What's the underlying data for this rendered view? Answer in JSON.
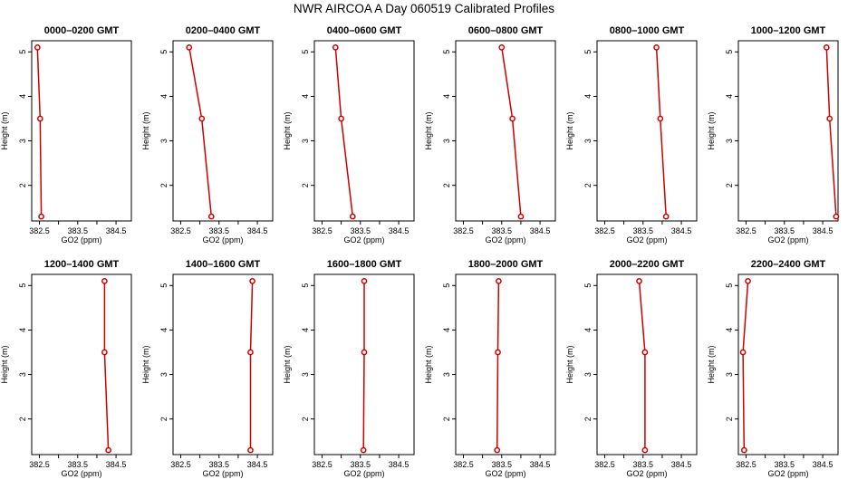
{
  "figure": {
    "title": "NWR AIRCOA A  Day 060519  Calibrated Profiles",
    "line_color": "#cc0000",
    "axis_color": "#000000"
  },
  "chart_data": [
    {
      "type": "line",
      "title": "0000–0200 GMT",
      "xlabel": "GO2 (ppm)",
      "ylabel": "Height (m)",
      "xlim": [
        382.3,
        384.9
      ],
      "ylim": [
        1.2,
        5.25
      ],
      "xticks": [
        382.5,
        383.5,
        384.5
      ],
      "xtick_labels": [
        "382.5",
        "383.5",
        "384.5"
      ],
      "yticks": [
        2,
        3,
        4,
        5
      ],
      "ytick_labels": [
        "2",
        "3",
        "4",
        "5"
      ],
      "x": [
        382.45,
        382.52,
        382.55
      ],
      "y": [
        5.1,
        3.5,
        1.3
      ]
    },
    {
      "type": "line",
      "title": "0200–0400 GMT",
      "xlabel": "GO2 (ppm)",
      "ylabel": "Height (m)",
      "xlim": [
        382.3,
        384.9
      ],
      "ylim": [
        1.2,
        5.25
      ],
      "xticks": [
        382.5,
        383.5,
        384.5
      ],
      "xtick_labels": [
        "382.5",
        "383.5",
        "384.5"
      ],
      "yticks": [
        2,
        3,
        4,
        5
      ],
      "ytick_labels": [
        "2",
        "3",
        "4",
        "5"
      ],
      "x": [
        382.72,
        383.05,
        383.3
      ],
      "y": [
        5.1,
        3.5,
        1.3
      ]
    },
    {
      "type": "line",
      "title": "0400–0600 GMT",
      "xlabel": "GO2 (ppm)",
      "ylabel": "Height (m)",
      "xlim": [
        382.3,
        384.9
      ],
      "ylim": [
        1.2,
        5.25
      ],
      "xticks": [
        382.5,
        383.5,
        384.5
      ],
      "xtick_labels": [
        "382.5",
        "383.5",
        "384.5"
      ],
      "yticks": [
        2,
        3,
        4,
        5
      ],
      "ytick_labels": [
        "2",
        "3",
        "4",
        "5"
      ],
      "x": [
        382.85,
        383.0,
        383.3
      ],
      "y": [
        5.1,
        3.5,
        1.3
      ]
    },
    {
      "type": "line",
      "title": "0600–0800 GMT",
      "xlabel": "GO2 (ppm)",
      "ylabel": "Height (m)",
      "xlim": [
        382.3,
        384.9
      ],
      "ylim": [
        1.2,
        5.25
      ],
      "xticks": [
        382.5,
        383.5,
        384.5
      ],
      "xtick_labels": [
        "382.5",
        "383.5",
        "384.5"
      ],
      "yticks": [
        2,
        3,
        4,
        5
      ],
      "ytick_labels": [
        "2",
        "3",
        "4",
        "5"
      ],
      "x": [
        383.5,
        383.78,
        384.0
      ],
      "y": [
        5.1,
        3.5,
        1.3
      ]
    },
    {
      "type": "line",
      "title": "0800–1000 GMT",
      "xlabel": "GO2 (ppm)",
      "ylabel": "Height (m)",
      "xlim": [
        382.3,
        384.9
      ],
      "ylim": [
        1.2,
        5.25
      ],
      "xticks": [
        382.5,
        383.5,
        384.5
      ],
      "xtick_labels": [
        "382.5",
        "383.5",
        "384.5"
      ],
      "yticks": [
        2,
        3,
        4,
        5
      ],
      "ytick_labels": [
        "2",
        "3",
        "4",
        "5"
      ],
      "x": [
        383.85,
        383.95,
        384.1
      ],
      "y": [
        5.1,
        3.5,
        1.3
      ]
    },
    {
      "type": "line",
      "title": "1000–1200 GMT",
      "xlabel": "GO2 (ppm)",
      "ylabel": "Height (m)",
      "xlim": [
        382.3,
        384.9
      ],
      "ylim": [
        1.2,
        5.25
      ],
      "xticks": [
        382.5,
        383.5,
        384.5
      ],
      "xtick_labels": [
        "382.5",
        "383.5",
        "384.5"
      ],
      "yticks": [
        2,
        3,
        4,
        5
      ],
      "ytick_labels": [
        "2",
        "3",
        "4",
        "5"
      ],
      "x": [
        384.6,
        384.68,
        384.85
      ],
      "y": [
        5.1,
        3.5,
        1.3
      ]
    },
    {
      "type": "line",
      "title": "1200–1400 GMT",
      "xlabel": "GO2 (ppm)",
      "ylabel": "Height (m)",
      "xlim": [
        382.3,
        384.9
      ],
      "ylim": [
        1.2,
        5.25
      ],
      "xticks": [
        382.5,
        383.5,
        384.5
      ],
      "xtick_labels": [
        "382.5",
        "383.5",
        "384.5"
      ],
      "yticks": [
        2,
        3,
        4,
        5
      ],
      "ytick_labels": [
        "2",
        "3",
        "4",
        "5"
      ],
      "x": [
        384.2,
        384.2,
        384.3
      ],
      "y": [
        5.1,
        3.5,
        1.3
      ]
    },
    {
      "type": "line",
      "title": "1400–1600 GMT",
      "xlabel": "GO2 (ppm)",
      "ylabel": "Height (m)",
      "xlim": [
        382.3,
        384.9
      ],
      "ylim": [
        1.2,
        5.25
      ],
      "xticks": [
        382.5,
        383.5,
        384.5
      ],
      "xtick_labels": [
        "382.5",
        "383.5",
        "384.5"
      ],
      "yticks": [
        2,
        3,
        4,
        5
      ],
      "ytick_labels": [
        "2",
        "3",
        "4",
        "5"
      ],
      "x": [
        384.37,
        384.32,
        384.32
      ],
      "y": [
        5.1,
        3.5,
        1.3
      ]
    },
    {
      "type": "line",
      "title": "1600–1800 GMT",
      "xlabel": "GO2 (ppm)",
      "ylabel": "Height (m)",
      "xlim": [
        382.3,
        384.9
      ],
      "ylim": [
        1.2,
        5.25
      ],
      "xticks": [
        382.5,
        383.5,
        384.5
      ],
      "xtick_labels": [
        "382.5",
        "383.5",
        "384.5"
      ],
      "yticks": [
        2,
        3,
        4,
        5
      ],
      "ytick_labels": [
        "2",
        "3",
        "4",
        "5"
      ],
      "x": [
        383.6,
        383.6,
        383.58
      ],
      "y": [
        5.1,
        3.5,
        1.3
      ]
    },
    {
      "type": "line",
      "title": "1800–2000 GMT",
      "xlabel": "GO2 (ppm)",
      "ylabel": "Height (m)",
      "xlim": [
        382.3,
        384.9
      ],
      "ylim": [
        1.2,
        5.25
      ],
      "xticks": [
        382.5,
        383.5,
        384.5
      ],
      "xtick_labels": [
        "382.5",
        "383.5",
        "384.5"
      ],
      "yticks": [
        2,
        3,
        4,
        5
      ],
      "ytick_labels": [
        "2",
        "3",
        "4",
        "5"
      ],
      "x": [
        383.42,
        383.4,
        383.38
      ],
      "y": [
        5.1,
        3.5,
        1.3
      ]
    },
    {
      "type": "line",
      "title": "2000–2200 GMT",
      "xlabel": "GO2 (ppm)",
      "ylabel": "Height (m)",
      "xlim": [
        382.3,
        384.9
      ],
      "ylim": [
        1.2,
        5.25
      ],
      "xticks": [
        382.5,
        383.5,
        384.5
      ],
      "xtick_labels": [
        "382.5",
        "383.5",
        "384.5"
      ],
      "yticks": [
        2,
        3,
        4,
        5
      ],
      "ytick_labels": [
        "2",
        "3",
        "4",
        "5"
      ],
      "x": [
        383.4,
        383.55,
        383.55
      ],
      "y": [
        5.1,
        3.5,
        1.3
      ]
    },
    {
      "type": "line",
      "title": "2200–2400 GMT",
      "xlabel": "GO2 (ppm)",
      "ylabel": "Height (m)",
      "xlim": [
        382.3,
        384.9
      ],
      "ylim": [
        1.2,
        5.25
      ],
      "xticks": [
        382.5,
        383.5,
        384.5
      ],
      "xtick_labels": [
        "382.5",
        "383.5",
        "384.5"
      ],
      "yticks": [
        2,
        3,
        4,
        5
      ],
      "ytick_labels": [
        "2",
        "3",
        "4",
        "5"
      ],
      "x": [
        382.55,
        382.42,
        382.45
      ],
      "y": [
        5.1,
        3.5,
        1.3
      ]
    }
  ]
}
